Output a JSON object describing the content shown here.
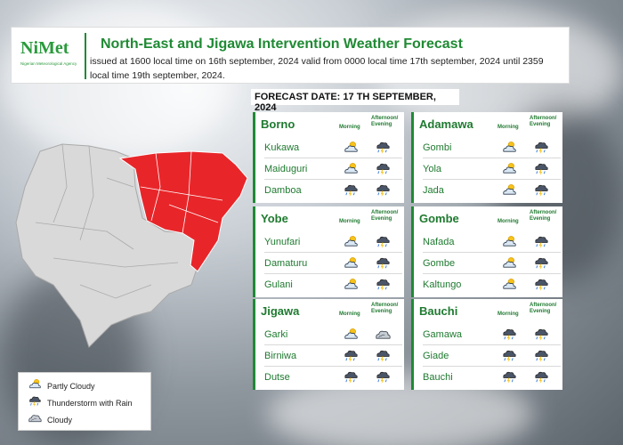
{
  "header": {
    "logo_text": "NiMet",
    "logo_subtitle": "Nigerian Meteorological Agency",
    "title": "North-East and Jigawa  Intervention Weather Forecast",
    "issued": "issued at 1600  local time on 16th september, 2024 valid from 0000 local time 17th september, 2024 until 2359 local time 19th september, 2024."
  },
  "forecast_date": "FORECAST DATE: 17 TH SEPTEMBER, 2024",
  "column_labels": {
    "morning": "Morning",
    "afternoon_line1": "Afternoon/",
    "afternoon_line2": "Evening"
  },
  "states": [
    {
      "name": "Borno",
      "locations": [
        {
          "name": "Kukawa",
          "morning": "partly-cloudy-icon",
          "afternoon": "thunderstorm-icon"
        },
        {
          "name": "Maiduguri",
          "morning": "partly-cloudy-icon",
          "afternoon": "thunderstorm-icon"
        },
        {
          "name": "Damboa",
          "morning": "thunderstorm-icon",
          "afternoon": "thunderstorm-icon"
        }
      ]
    },
    {
      "name": "Adamawa",
      "locations": [
        {
          "name": "Gombi",
          "morning": "partly-cloudy-icon",
          "afternoon": "thunderstorm-icon"
        },
        {
          "name": "Yola",
          "morning": "partly-cloudy-icon",
          "afternoon": "thunderstorm-icon"
        },
        {
          "name": "Jada",
          "morning": "partly-cloudy-icon",
          "afternoon": "thunderstorm-icon"
        }
      ]
    },
    {
      "name": "Yobe",
      "locations": [
        {
          "name": "Yunufari",
          "morning": "partly-cloudy-icon",
          "afternoon": "thunderstorm-icon"
        },
        {
          "name": "Damaturu",
          "morning": "partly-cloudy-icon",
          "afternoon": "thunderstorm-icon"
        },
        {
          "name": "Gulani",
          "morning": "partly-cloudy-icon",
          "afternoon": "thunderstorm-icon"
        }
      ]
    },
    {
      "name": "Gombe",
      "locations": [
        {
          "name": "Nafada",
          "morning": "partly-cloudy-icon",
          "afternoon": "thunderstorm-icon"
        },
        {
          "name": "Gombe",
          "morning": "partly-cloudy-icon",
          "afternoon": "thunderstorm-icon"
        },
        {
          "name": "Kaltungo",
          "morning": "partly-cloudy-icon",
          "afternoon": "thunderstorm-icon"
        }
      ]
    },
    {
      "name": "Jigawa",
      "locations": [
        {
          "name": "Garki",
          "morning": "partly-cloudy-icon",
          "afternoon": "cloudy-icon"
        },
        {
          "name": "Birniwa",
          "morning": "thunderstorm-icon",
          "afternoon": "thunderstorm-icon"
        },
        {
          "name": "Dutse",
          "morning": "thunderstorm-icon",
          "afternoon": "thunderstorm-icon"
        }
      ]
    },
    {
      "name": "Bauchi",
      "locations": [
        {
          "name": "Gamawa",
          "morning": "thunderstorm-icon",
          "afternoon": "thunderstorm-icon"
        },
        {
          "name": "Giade",
          "morning": "thunderstorm-icon",
          "afternoon": "thunderstorm-icon"
        },
        {
          "name": "Bauchi",
          "morning": "thunderstorm-icon",
          "afternoon": "thunderstorm-icon"
        }
      ]
    }
  ],
  "legend": [
    {
      "label": "Partly Cloudy",
      "icon": "partly-cloudy-icon"
    },
    {
      "label": "Thunderstorm with Rain",
      "icon": "thunderstorm-icon"
    },
    {
      "label": "Cloudy",
      "icon": "cloudy-icon"
    }
  ],
  "colors": {
    "brand_green": "#1f8a34",
    "highlight_red": "#e8262a",
    "map_grey": "#d9d9d9"
  }
}
